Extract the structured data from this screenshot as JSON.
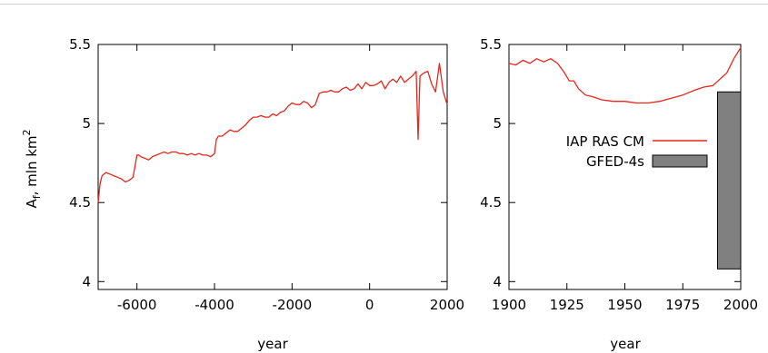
{
  "chart_data": [
    {
      "type": "line",
      "xlabel": "year",
      "ylabel": "A",
      "ylabel_sub": "f",
      "ylabel_unit": ", mln km",
      "ylabel_sup": "2",
      "xlim": [
        -7000,
        2000
      ],
      "ylim": [
        3.95,
        5.5
      ],
      "xticks": [
        -6000,
        -4000,
        -2000,
        0,
        2000
      ],
      "xtick_labels": [
        "-6000",
        "-4000",
        "-2000",
        "0",
        "2000"
      ],
      "yticks": [
        4,
        4.5,
        5,
        5.5
      ],
      "ytick_labels": [
        "4",
        "4.5",
        "5",
        "5.5"
      ],
      "series": [
        {
          "color": "#e8261b",
          "x": [
            -7000,
            -6950,
            -6900,
            -6800,
            -6700,
            -6600,
            -6500,
            -6400,
            -6300,
            -6200,
            -6100,
            -6000,
            -5950,
            -5900,
            -5800,
            -5700,
            -5600,
            -5500,
            -5400,
            -5300,
            -5200,
            -5100,
            -5000,
            -4900,
            -4800,
            -4700,
            -4600,
            -4500,
            -4400,
            -4300,
            -4200,
            -4100,
            -4000,
            -3950,
            -3900,
            -3800,
            -3700,
            -3600,
            -3500,
            -3400,
            -3300,
            -3200,
            -3100,
            -3000,
            -2900,
            -2800,
            -2700,
            -2600,
            -2500,
            -2400,
            -2300,
            -2200,
            -2100,
            -2000,
            -1900,
            -1800,
            -1700,
            -1600,
            -1500,
            -1400,
            -1300,
            -1200,
            -1100,
            -1000,
            -900,
            -800,
            -700,
            -600,
            -500,
            -400,
            -300,
            -200,
            -100,
            0,
            100,
            200,
            300,
            400,
            500,
            600,
            700,
            800,
            900,
            1000,
            1100,
            1200,
            1250,
            1300,
            1400,
            1500,
            1600,
            1700,
            1800,
            1900,
            2000
          ],
          "values": [
            4.5,
            4.62,
            4.67,
            4.69,
            4.68,
            4.67,
            4.66,
            4.65,
            4.63,
            4.64,
            4.66,
            4.8,
            4.8,
            4.79,
            4.78,
            4.77,
            4.79,
            4.8,
            4.81,
            4.82,
            4.81,
            4.82,
            4.82,
            4.81,
            4.81,
            4.8,
            4.81,
            4.8,
            4.81,
            4.8,
            4.8,
            4.79,
            4.81,
            4.9,
            4.92,
            4.92,
            4.94,
            4.96,
            4.95,
            4.95,
            4.97,
            4.99,
            5.02,
            5.04,
            5.04,
            5.05,
            5.04,
            5.04,
            5.06,
            5.05,
            5.07,
            5.08,
            5.11,
            5.13,
            5.12,
            5.12,
            5.14,
            5.13,
            5.1,
            5.12,
            5.19,
            5.2,
            5.2,
            5.21,
            5.2,
            5.2,
            5.22,
            5.23,
            5.21,
            5.22,
            5.25,
            5.22,
            5.26,
            5.24,
            5.24,
            5.25,
            5.27,
            5.22,
            5.26,
            5.28,
            5.26,
            5.3,
            5.26,
            5.28,
            5.3,
            5.33,
            4.9,
            5.3,
            5.32,
            5.33,
            5.25,
            5.2,
            5.38,
            5.2,
            5.12
          ]
        }
      ]
    },
    {
      "type": "line",
      "xlabel": "year",
      "xlim": [
        1900,
        2000
      ],
      "ylim": [
        3.95,
        5.5
      ],
      "xticks": [
        1900,
        1925,
        1950,
        1975,
        2000
      ],
      "xtick_labels": [
        "1900",
        "1925",
        "1950",
        "1975",
        "2000"
      ],
      "yticks": [
        4,
        4.5,
        5,
        5.5
      ],
      "ytick_labels": [
        "4",
        "4.5",
        "5",
        "5.5"
      ],
      "series": [
        {
          "name": "IAP RAS CM",
          "color": "#e8261b",
          "x": [
            1900,
            1903,
            1906,
            1909,
            1912,
            1915,
            1918,
            1921,
            1924,
            1926,
            1928,
            1930,
            1933,
            1936,
            1940,
            1945,
            1950,
            1955,
            1960,
            1965,
            1970,
            1975,
            1980,
            1984,
            1988,
            1991,
            1994,
            1997,
            2000
          ],
          "values": [
            5.38,
            5.37,
            5.4,
            5.38,
            5.41,
            5.39,
            5.41,
            5.38,
            5.32,
            5.27,
            5.27,
            5.22,
            5.18,
            5.17,
            5.15,
            5.14,
            5.14,
            5.13,
            5.13,
            5.14,
            5.16,
            5.18,
            5.21,
            5.23,
            5.24,
            5.28,
            5.32,
            5.41,
            5.48
          ]
        }
      ],
      "bars": [
        {
          "name": "GFED-4s",
          "color": "#808080",
          "x_range": [
            1990,
            2000
          ],
          "y_range": [
            4.08,
            5.2
          ]
        }
      ],
      "legend_position": "center-right",
      "legend": [
        "IAP RAS CM",
        "GFED-4s"
      ]
    }
  ]
}
